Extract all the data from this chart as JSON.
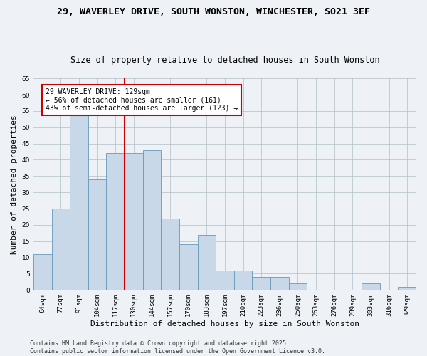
{
  "title": "29, WAVERLEY DRIVE, SOUTH WONSTON, WINCHESTER, SO21 3EF",
  "subtitle": "Size of property relative to detached houses in South Wonston",
  "xlabel": "Distribution of detached houses by size in South Wonston",
  "ylabel": "Number of detached properties",
  "categories": [
    "64sqm",
    "77sqm",
    "91sqm",
    "104sqm",
    "117sqm",
    "130sqm",
    "144sqm",
    "157sqm",
    "170sqm",
    "183sqm",
    "197sqm",
    "210sqm",
    "223sqm",
    "236sqm",
    "250sqm",
    "263sqm",
    "276sqm",
    "289sqm",
    "303sqm",
    "316sqm",
    "329sqm"
  ],
  "values": [
    11,
    25,
    54,
    34,
    42,
    42,
    43,
    22,
    14,
    17,
    6,
    6,
    4,
    4,
    2,
    0,
    0,
    0,
    2,
    0,
    1
  ],
  "bar_color": "#c8d8e8",
  "bar_edge_color": "#6699bb",
  "reference_line_index": 5,
  "reference_label": "29 WAVERLEY DRIVE: 129sqm",
  "annotation_line1": "← 56% of detached houses are smaller (161)",
  "annotation_line2": "43% of semi-detached houses are larger (123) →",
  "annotation_box_facecolor": "#ffffff",
  "annotation_box_edgecolor": "#cc0000",
  "reference_line_color": "#cc0000",
  "ylim": [
    0,
    65
  ],
  "yticks": [
    0,
    5,
    10,
    15,
    20,
    25,
    30,
    35,
    40,
    45,
    50,
    55,
    60,
    65
  ],
  "footer_line1": "Contains HM Land Registry data © Crown copyright and database right 2025.",
  "footer_line2": "Contains public sector information licensed under the Open Government Licence v3.0.",
  "background_color": "#eef2f7",
  "title_fontsize": 9.5,
  "subtitle_fontsize": 8.5,
  "tick_fontsize": 6.5,
  "axis_label_fontsize": 8,
  "annotation_fontsize": 7,
  "footer_fontsize": 6
}
